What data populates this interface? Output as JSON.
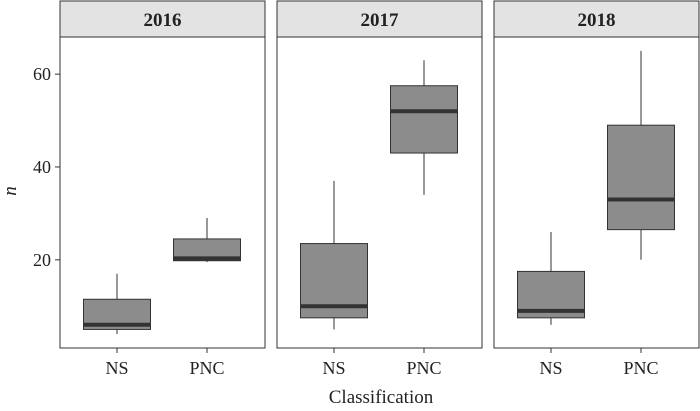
{
  "chart_data": {
    "type": "boxplot",
    "facet_by": "year",
    "facets": [
      {
        "label": "2016",
        "boxes": [
          {
            "category": "NS",
            "min": 4,
            "q1": 5,
            "median": 6,
            "q3": 11.5,
            "max": 17
          },
          {
            "category": "PNC",
            "min": 19.5,
            "q1": 19.8,
            "median": 20.3,
            "q3": 24.5,
            "max": 29
          }
        ]
      },
      {
        "label": "2017",
        "boxes": [
          {
            "category": "NS",
            "min": 5,
            "q1": 7.5,
            "median": 10,
            "q3": 23.5,
            "max": 37
          },
          {
            "category": "PNC",
            "min": 34,
            "q1": 43,
            "median": 52,
            "q3": 57.5,
            "max": 63
          }
        ]
      },
      {
        "label": "2018",
        "boxes": [
          {
            "category": "NS",
            "min": 6,
            "q1": 7.5,
            "median": 9,
            "q3": 17.5,
            "max": 26
          },
          {
            "category": "PNC",
            "min": 20,
            "q1": 26.5,
            "median": 33,
            "q3": 49,
            "max": 65
          }
        ]
      }
    ],
    "categories": [
      "NS",
      "PNC"
    ],
    "xlabel": "Classification",
    "ylabel": "n",
    "ylim": [
      1,
      68
    ],
    "yticks": [
      20,
      40,
      60
    ],
    "grid": false,
    "box_color": "#8c8c8c",
    "median_color": "#333333",
    "strip_color": "#e3e3e3"
  }
}
